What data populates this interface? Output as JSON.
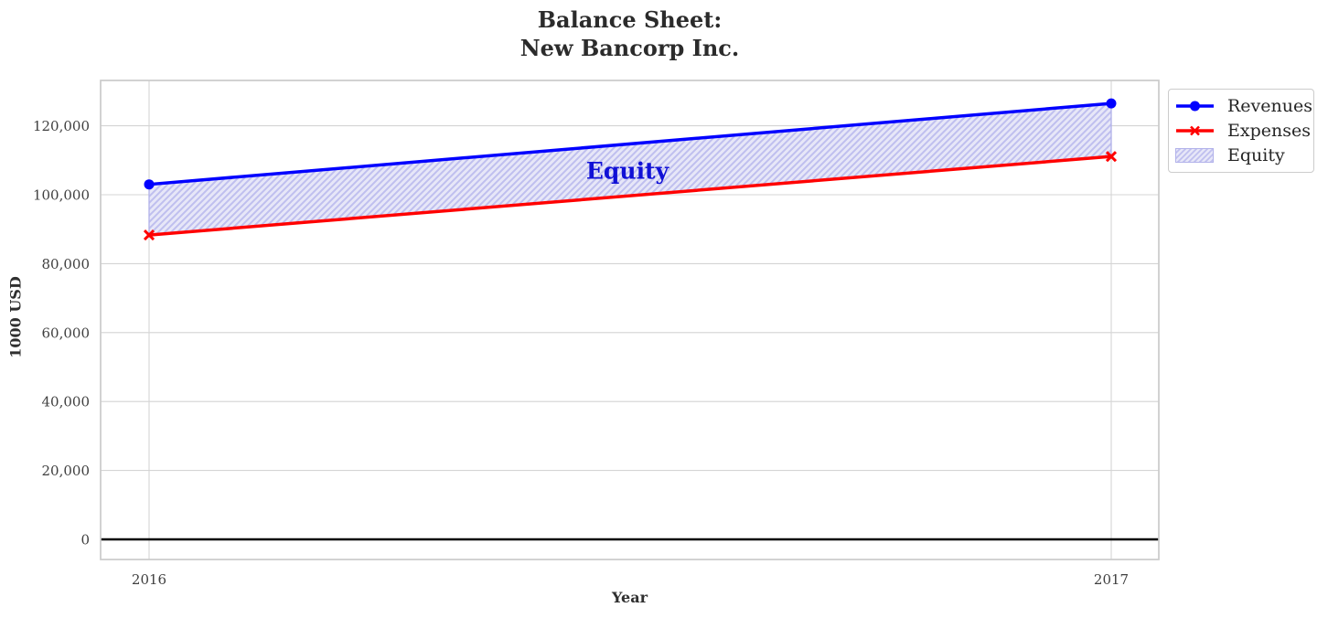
{
  "figure": {
    "title_line1": "Balance Sheet:",
    "title_line2": "New Bancorp Inc."
  },
  "chart_data": {
    "type": "line",
    "title": "Balance Sheet: New Bancorp Inc.",
    "xlabel": "Year",
    "ylabel": "1000 USD",
    "x": [
      2016,
      2017
    ],
    "x_tick_labels": [
      "2016",
      "2017"
    ],
    "y_ticks": [
      0,
      20000,
      40000,
      60000,
      80000,
      100000,
      120000
    ],
    "y_tick_labels": [
      "0",
      "20,000",
      "40,000",
      "60,000",
      "80,000",
      "100,000",
      "120,000"
    ],
    "ylim": [
      -5800,
      133200
    ],
    "grid": true,
    "zero_line": {
      "y": 0,
      "color": "#000000"
    },
    "series": [
      {
        "name": "Revenues",
        "color": "#0000ff",
        "marker": "circle",
        "values": [
          103000,
          126500
        ]
      },
      {
        "name": "Expenses",
        "color": "#ff0000",
        "marker": "x",
        "values": [
          88300,
          111100
        ]
      }
    ],
    "fill_between": {
      "label": "Equity",
      "annotation": "Equity",
      "annotation_color": "#1111d6",
      "between": [
        "Revenues",
        "Expenses"
      ],
      "facecolor": "#e7e7f8",
      "hatch": "//",
      "hatch_color": "#bfbfef",
      "edge_color": "#b2b2ea",
      "values": [
        14700,
        15400
      ]
    },
    "legend": {
      "position": "upper-right-outside",
      "entries": [
        "Revenues",
        "Expenses",
        "Equity"
      ]
    },
    "colors": {
      "grid": "#d4d4d4",
      "spine": "#cbcbcb",
      "tick_text": "#3f3f3f",
      "title_text": "#2b2b2b"
    }
  }
}
